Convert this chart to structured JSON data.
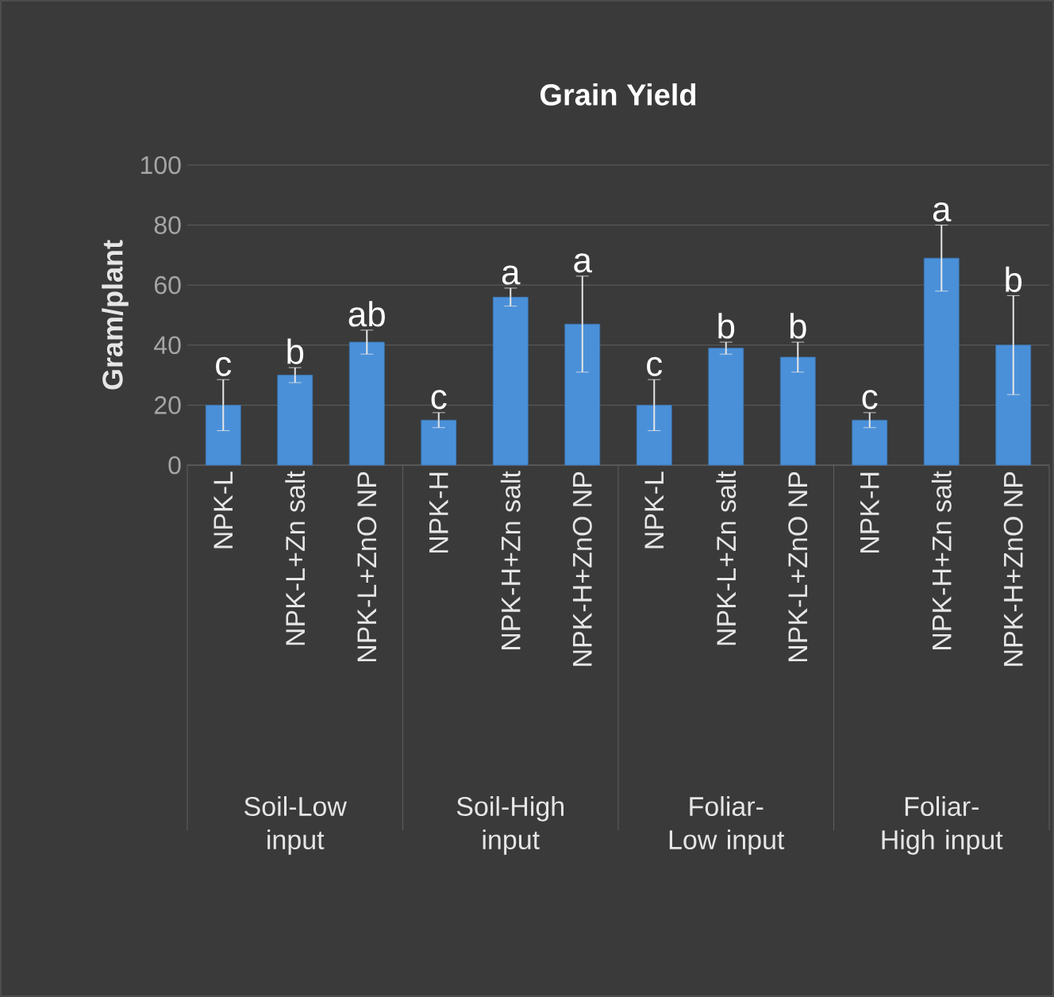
{
  "chart_data": {
    "type": "bar",
    "title": "Grain  Yield",
    "ylabel": "Gram/plant",
    "categories": [
      "NPK-L",
      "NPK-L+Zn salt",
      "NPK-L+ZnO NP",
      "NPK-H",
      "NPK-H+Zn salt",
      "NPK-H+ZnO NP",
      "NPK-L",
      "NPK-L+Zn salt",
      "NPK-L+ZnO NP",
      "NPK-H",
      "NPK-H+Zn salt",
      "NPK-H+ZnO NP"
    ],
    "values": [
      20,
      30,
      41,
      15,
      56,
      47,
      20,
      39,
      36,
      15,
      69,
      40
    ],
    "errors": [
      8.5,
      2.5,
      4,
      2.5,
      3,
      16,
      8.5,
      2,
      5,
      2.5,
      11,
      16.5
    ],
    "value_labels": [
      "c",
      "b",
      "ab",
      "c",
      "a",
      "a",
      "c",
      "b",
      "b",
      "c",
      "a",
      "b"
    ],
    "annotations": [
      "Soil-Low input",
      "Soil-High input",
      "Foliar-Low input",
      "Foliar-High input"
    ],
    "color": "#4a90d9",
    "ylim": [
      0,
      100
    ],
    "yticks": [
      0,
      20,
      40,
      60,
      80,
      100
    ],
    "grid": "y"
  }
}
